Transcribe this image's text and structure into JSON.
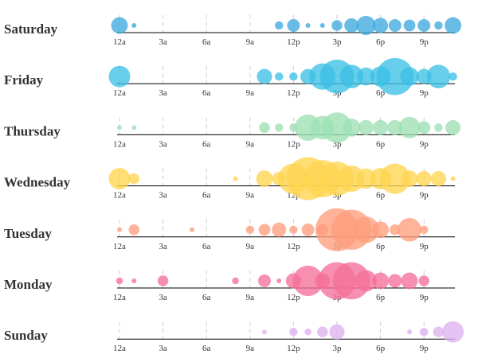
{
  "chart_data": {
    "type": "scatter",
    "title": "",
    "xlabel": "",
    "ylabel": "",
    "x_tick_labels": [
      "12a",
      "3a",
      "6a",
      "9a",
      "12p",
      "3p",
      "6p",
      "9p"
    ],
    "x_hours": [
      0,
      1,
      2,
      3,
      4,
      5,
      6,
      7,
      8,
      9,
      10,
      11,
      12,
      13,
      14,
      15,
      16,
      17,
      18,
      19,
      20,
      21,
      22,
      23
    ],
    "grid": true,
    "legend": "none",
    "series": [
      {
        "name": "Saturday",
        "color": "#3fa9df",
        "values": [
          12,
          1,
          0,
          0,
          0,
          0,
          0,
          0,
          0,
          0,
          0,
          3,
          7,
          1,
          1,
          5,
          9,
          16,
          10,
          7,
          6,
          7,
          3,
          12
        ]
      },
      {
        "name": "Friday",
        "color": "#3cc0e5",
        "values": [
          20,
          0,
          0,
          0,
          0,
          0,
          0,
          0,
          0,
          0,
          10,
          3,
          3,
          10,
          30,
          50,
          24,
          14,
          18,
          60,
          15,
          10,
          24,
          3
        ]
      },
      {
        "name": "Thursday",
        "color": "#9ee0b4",
        "values": [
          1,
          1,
          0,
          0,
          0,
          0,
          0,
          0,
          0,
          0,
          5,
          3,
          3,
          30,
          24,
          40,
          14,
          10,
          10,
          10,
          20,
          7,
          3,
          10
        ]
      },
      {
        "name": "Wednesday",
        "color": "#ffd54f",
        "values": [
          20,
          5,
          0,
          0,
          0,
          0,
          0,
          0,
          1,
          0,
          12,
          8,
          40,
          80,
          60,
          50,
          30,
          18,
          20,
          40,
          12,
          10,
          10,
          1
        ]
      },
      {
        "name": "Tuesday",
        "color": "#ff9e7c",
        "values": [
          1,
          5,
          0,
          0,
          0,
          1,
          0,
          0,
          0,
          3,
          6,
          9,
          3,
          7,
          6,
          80,
          70,
          30,
          12,
          5,
          24,
          3,
          0,
          0
        ]
      },
      {
        "name": "Monday",
        "color": "#f5709a",
        "values": [
          2,
          1,
          0,
          5,
          0,
          0,
          0,
          0,
          2,
          0,
          7,
          1,
          10,
          40,
          10,
          60,
          60,
          20,
          12,
          8,
          12,
          5,
          0,
          0
        ]
      },
      {
        "name": "Sunday",
        "color": "#ddb2f0",
        "values": [
          0,
          0,
          0,
          0,
          0,
          0,
          0,
          0,
          0,
          0,
          1,
          0,
          3,
          2,
          5,
          10,
          0,
          0,
          0,
          0,
          1,
          3,
          5,
          20
        ]
      }
    ]
  }
}
